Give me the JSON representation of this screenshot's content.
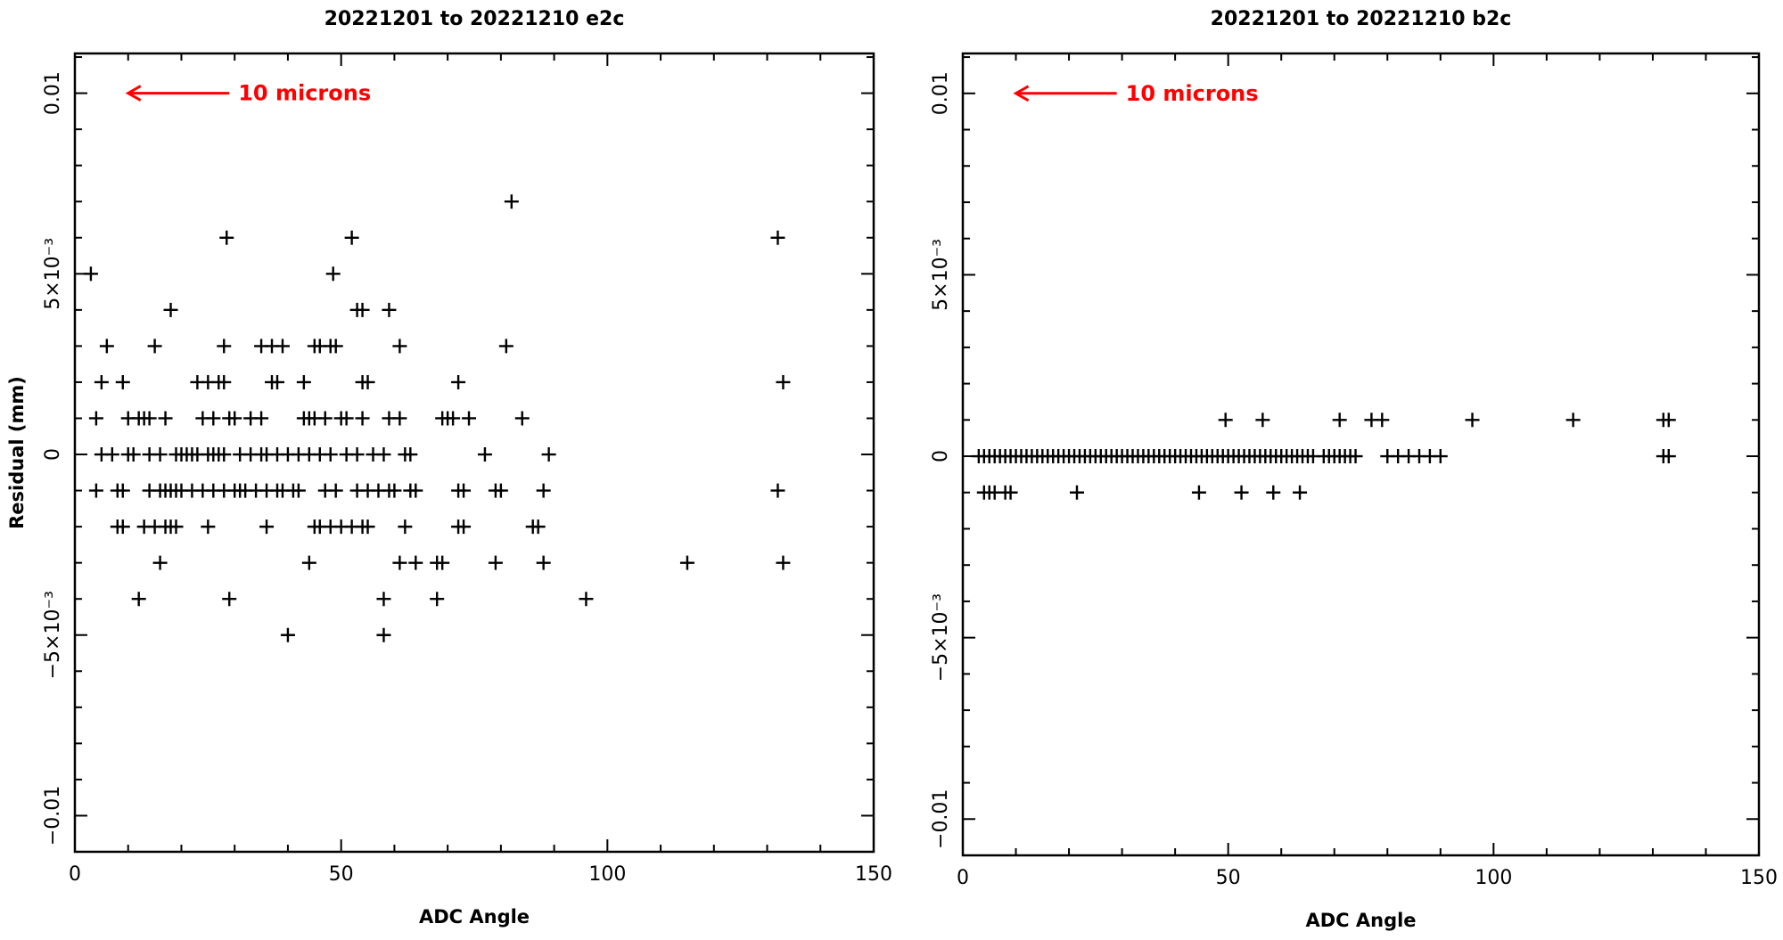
{
  "chart_data": [
    {
      "type": "scatter",
      "title": "20221201 to 20221210 e2c",
      "xlabel": "ADC Angle",
      "ylabel": "Residual (mm)",
      "xlim": [
        0,
        150
      ],
      "ylim": [
        -0.011,
        0.0111
      ],
      "x_ticks": [
        {
          "value": 0,
          "label": "0"
        },
        {
          "value": 50,
          "label": "50"
        },
        {
          "value": 100,
          "label": "100"
        },
        {
          "value": 150,
          "label": "150"
        }
      ],
      "y_ticks": [
        {
          "value": -0.01,
          "label": "−0.01"
        },
        {
          "value": -0.005,
          "label": "−5×10⁻³"
        },
        {
          "value": 0,
          "label": "0"
        },
        {
          "value": 0.005,
          "label": "5×10⁻³"
        },
        {
          "value": 0.01,
          "label": "0.01"
        }
      ],
      "grid": false,
      "annotation": {
        "text": "10 microns",
        "color": "#ff0000",
        "arrow_from": [
          29,
          0.01
        ],
        "arrow_to": [
          10,
          0.01
        ]
      },
      "points": [
        [
          3,
          0.005
        ],
        [
          4,
          0.001
        ],
        [
          4,
          -0.001
        ],
        [
          5,
          0.002
        ],
        [
          5,
          0
        ],
        [
          6,
          0.003
        ],
        [
          7,
          0
        ],
        [
          8,
          -0.001
        ],
        [
          8,
          -0.002
        ],
        [
          9,
          -0.001
        ],
        [
          9,
          0.002
        ],
        [
          9,
          -0.002
        ],
        [
          10,
          0
        ],
        [
          10,
          0.001
        ],
        [
          11,
          0
        ],
        [
          12,
          -0.004
        ],
        [
          12,
          0.001
        ],
        [
          13,
          0.001
        ],
        [
          13,
          -0.002
        ],
        [
          14,
          0.001
        ],
        [
          14,
          0
        ],
        [
          14,
          -0.001
        ],
        [
          15,
          0.003
        ],
        [
          15,
          -0.002
        ],
        [
          16,
          -0.001
        ],
        [
          16,
          -0.003
        ],
        [
          16,
          0
        ],
        [
          17,
          -0.002
        ],
        [
          17,
          -0.001
        ],
        [
          17,
          0.001
        ],
        [
          18,
          0.004
        ],
        [
          18,
          -0.001
        ],
        [
          18,
          -0.002
        ],
        [
          19,
          -0.002
        ],
        [
          19,
          -0.001
        ],
        [
          19,
          0
        ],
        [
          20,
          -0.001
        ],
        [
          20,
          0
        ],
        [
          21,
          0
        ],
        [
          22,
          -0.001
        ],
        [
          22,
          0
        ],
        [
          23,
          0.002
        ],
        [
          23,
          0
        ],
        [
          24,
          0.001
        ],
        [
          24,
          -0.001
        ],
        [
          25,
          0.002
        ],
        [
          25,
          -0.002
        ],
        [
          25,
          0
        ],
        [
          26,
          0.001
        ],
        [
          26,
          -0.001
        ],
        [
          26,
          0
        ],
        [
          27,
          0.002
        ],
        [
          27,
          0
        ],
        [
          28,
          -0.001
        ],
        [
          28,
          0.003
        ],
        [
          28,
          0.002
        ],
        [
          28,
          0
        ],
        [
          28.5,
          0.006
        ],
        [
          29,
          -0.004
        ],
        [
          29,
          0.001
        ],
        [
          30,
          -0.001
        ],
        [
          30,
          0.001
        ],
        [
          31,
          0
        ],
        [
          31,
          -0.001
        ],
        [
          32,
          -0.001
        ],
        [
          33,
          0
        ],
        [
          33,
          0.001
        ],
        [
          34,
          -0.001
        ],
        [
          35,
          0
        ],
        [
          35,
          0.003
        ],
        [
          35,
          0.001
        ],
        [
          36,
          -0.001
        ],
        [
          36,
          -0.002
        ],
        [
          36,
          0
        ],
        [
          37,
          0.003
        ],
        [
          37,
          0.002
        ],
        [
          38,
          -0.001
        ],
        [
          38,
          0
        ],
        [
          38,
          0.002
        ],
        [
          39,
          0.003
        ],
        [
          39,
          -0.001
        ],
        [
          40,
          0
        ],
        [
          40,
          -0.005
        ],
        [
          41,
          -0.001
        ],
        [
          42,
          0
        ],
        [
          42,
          -0.001
        ],
        [
          43,
          0.002
        ],
        [
          43,
          0.001
        ],
        [
          44,
          0.001
        ],
        [
          44,
          0
        ],
        [
          44,
          -0.003
        ],
        [
          45,
          0.003
        ],
        [
          45,
          0.001
        ],
        [
          45,
          -0.002
        ],
        [
          46,
          0.003
        ],
        [
          46,
          0
        ],
        [
          46,
          -0.002
        ],
        [
          47,
          -0.001
        ],
        [
          47,
          0.001
        ],
        [
          48,
          0.003
        ],
        [
          48,
          0
        ],
        [
          48,
          -0.002
        ],
        [
          48.5,
          0.005
        ],
        [
          49,
          0.003
        ],
        [
          49,
          -0.001
        ],
        [
          50,
          0.001
        ],
        [
          50,
          -0.002
        ],
        [
          51,
          0.001
        ],
        [
          51,
          0
        ],
        [
          52,
          -0.002
        ],
        [
          52,
          0.006
        ],
        [
          53,
          0.004
        ],
        [
          53,
          -0.001
        ],
        [
          53,
          0
        ],
        [
          54,
          0.004
        ],
        [
          54,
          0.002
        ],
        [
          54,
          0.001
        ],
        [
          54,
          -0.002
        ],
        [
          55,
          0.002
        ],
        [
          55,
          -0.001
        ],
        [
          55,
          -0.002
        ],
        [
          56,
          0
        ],
        [
          57,
          -0.001
        ],
        [
          58,
          -0.004
        ],
        [
          58,
          0
        ],
        [
          58,
          -0.005
        ],
        [
          59,
          0.004
        ],
        [
          59,
          0.001
        ],
        [
          59,
          -0.001
        ],
        [
          60,
          -0.001
        ],
        [
          61,
          0.003
        ],
        [
          61,
          0.001
        ],
        [
          61,
          -0.003
        ],
        [
          62,
          0
        ],
        [
          62,
          -0.002
        ],
        [
          63,
          -0.001
        ],
        [
          63,
          0
        ],
        [
          64,
          -0.003
        ],
        [
          64,
          -0.001
        ],
        [
          68,
          -0.003
        ],
        [
          68,
          -0.004
        ],
        [
          69,
          -0.003
        ],
        [
          69,
          0.001
        ],
        [
          70,
          0.001
        ],
        [
          71,
          0.001
        ],
        [
          72,
          0.002
        ],
        [
          72,
          -0.001
        ],
        [
          72,
          -0.002
        ],
        [
          73,
          -0.002
        ],
        [
          73,
          -0.001
        ],
        [
          74,
          0.001
        ],
        [
          77,
          0
        ],
        [
          79,
          -0.003
        ],
        [
          79,
          -0.001
        ],
        [
          80,
          -0.001
        ],
        [
          81,
          0.003
        ],
        [
          82,
          0.007
        ],
        [
          84,
          0.001
        ],
        [
          86,
          -0.002
        ],
        [
          87,
          -0.002
        ],
        [
          88,
          -0.003
        ],
        [
          88,
          -0.001
        ],
        [
          89,
          0
        ],
        [
          96,
          -0.004
        ],
        [
          115,
          -0.003
        ],
        [
          132,
          0.006
        ],
        [
          132,
          -0.001
        ],
        [
          133,
          0.002
        ],
        [
          133,
          -0.003
        ]
      ]
    },
    {
      "type": "scatter",
      "title": "20221201 to 20221210 b2c",
      "xlabel": "ADC Angle",
      "ylabel": "",
      "xlim": [
        0,
        150
      ],
      "ylim": [
        -0.011,
        0.0111
      ],
      "x_ticks": [
        {
          "value": 0,
          "label": "0"
        },
        {
          "value": 50,
          "label": "50"
        },
        {
          "value": 100,
          "label": "100"
        },
        {
          "value": 150,
          "label": "150"
        }
      ],
      "y_ticks": [
        {
          "value": -0.01,
          "label": "−0.01"
        },
        {
          "value": -0.005,
          "label": "−5×10⁻³"
        },
        {
          "value": 0,
          "label": "0"
        },
        {
          "value": 0.005,
          "label": "5×10⁻³"
        },
        {
          "value": 0.01,
          "label": "0.01"
        }
      ],
      "grid": false,
      "annotation": {
        "text": "10 microns",
        "color": "#ff0000",
        "arrow_from": [
          29,
          0.01
        ],
        "arrow_to": [
          10,
          0.01
        ]
      },
      "points": [
        [
          3,
          0
        ],
        [
          4,
          0
        ],
        [
          4,
          -0.001
        ],
        [
          5,
          0
        ],
        [
          5,
          -0.001
        ],
        [
          6,
          0
        ],
        [
          6,
          -0.001
        ],
        [
          7,
          0
        ],
        [
          8,
          0
        ],
        [
          8,
          -0.001
        ],
        [
          9,
          0
        ],
        [
          9,
          -0.001
        ],
        [
          10,
          0
        ],
        [
          11,
          0
        ],
        [
          12,
          0
        ],
        [
          13,
          0
        ],
        [
          14,
          0
        ],
        [
          15,
          0
        ],
        [
          16,
          0
        ],
        [
          17,
          0
        ],
        [
          18,
          0
        ],
        [
          19,
          0
        ],
        [
          20,
          0
        ],
        [
          21,
          0
        ],
        [
          21.5,
          -0.001
        ],
        [
          22,
          0
        ],
        [
          23,
          0
        ],
        [
          24,
          0
        ],
        [
          25,
          0
        ],
        [
          26,
          0
        ],
        [
          27,
          0
        ],
        [
          28,
          0
        ],
        [
          29,
          0
        ],
        [
          30,
          0
        ],
        [
          31,
          0
        ],
        [
          32,
          0
        ],
        [
          33,
          0
        ],
        [
          34,
          0
        ],
        [
          35,
          0
        ],
        [
          36,
          0
        ],
        [
          37,
          0
        ],
        [
          38,
          0
        ],
        [
          39,
          0
        ],
        [
          40,
          0
        ],
        [
          41,
          0
        ],
        [
          42,
          0
        ],
        [
          43,
          0
        ],
        [
          44,
          0
        ],
        [
          44.5,
          -0.001
        ],
        [
          45,
          0
        ],
        [
          46,
          0
        ],
        [
          47,
          0
        ],
        [
          48,
          0
        ],
        [
          49,
          0
        ],
        [
          49.5,
          0.001
        ],
        [
          50,
          0
        ],
        [
          51,
          0
        ],
        [
          52,
          0
        ],
        [
          52.5,
          -0.001
        ],
        [
          53,
          0
        ],
        [
          54,
          0
        ],
        [
          55,
          0
        ],
        [
          56,
          0
        ],
        [
          56.5,
          0.001
        ],
        [
          57,
          0
        ],
        [
          58,
          0
        ],
        [
          58.5,
          -0.001
        ],
        [
          59,
          0
        ],
        [
          60,
          0
        ],
        [
          61,
          0
        ],
        [
          62,
          0
        ],
        [
          63,
          0
        ],
        [
          63.5,
          -0.001
        ],
        [
          64,
          0
        ],
        [
          65,
          0
        ],
        [
          66,
          0
        ],
        [
          68,
          0
        ],
        [
          69,
          0
        ],
        [
          70,
          0
        ],
        [
          71,
          0
        ],
        [
          71,
          0.001
        ],
        [
          72,
          0
        ],
        [
          73,
          0
        ],
        [
          74,
          0
        ],
        [
          77,
          0.001
        ],
        [
          79,
          0.001
        ],
        [
          80,
          0
        ],
        [
          82,
          0
        ],
        [
          84,
          0
        ],
        [
          86,
          0
        ],
        [
          88,
          0
        ],
        [
          90,
          0
        ],
        [
          96,
          0.001
        ],
        [
          115,
          0.001
        ],
        [
          132,
          0.001
        ],
        [
          132,
          0
        ],
        [
          133,
          0.001
        ],
        [
          133,
          0
        ]
      ]
    }
  ]
}
